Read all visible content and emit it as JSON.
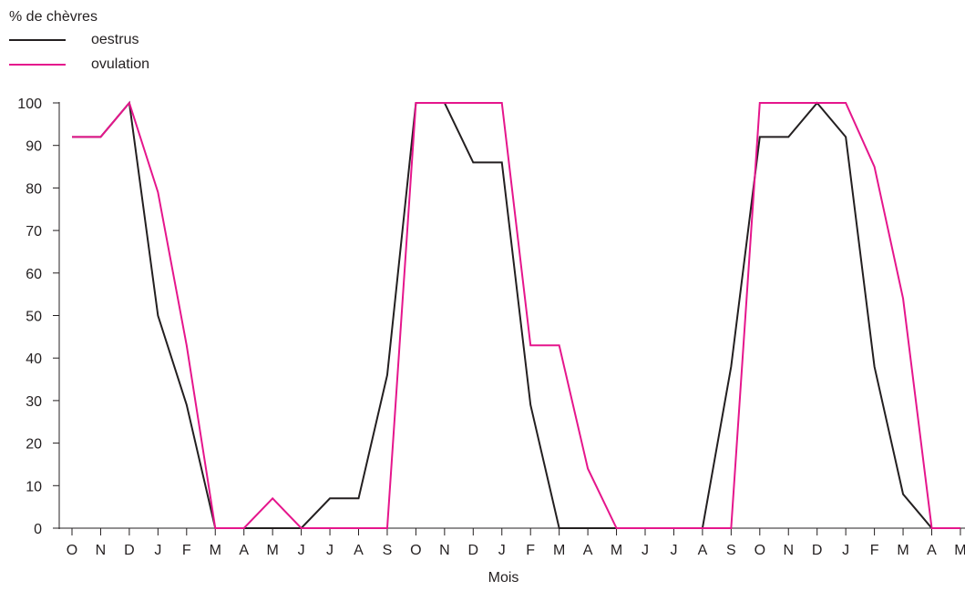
{
  "chart_data": {
    "type": "line",
    "ylabel": "% de chèvres",
    "xlabel": "Mois",
    "ylim": [
      0,
      100
    ],
    "yticks": [
      0,
      10,
      20,
      30,
      40,
      50,
      60,
      70,
      80,
      90,
      100
    ],
    "categories": [
      "O",
      "N",
      "D",
      "J",
      "F",
      "M",
      "A",
      "M",
      "J",
      "J",
      "A",
      "S",
      "O",
      "N",
      "D",
      "J",
      "F",
      "M",
      "A",
      "M",
      "J",
      "J",
      "A",
      "S",
      "O",
      "N",
      "D",
      "J",
      "F",
      "M",
      "A",
      "M"
    ],
    "grid": false,
    "legend_position": "top-left",
    "series": [
      {
        "name": "oestrus",
        "color": "#231f20",
        "values": [
          92,
          92,
          100,
          50,
          29,
          0,
          0,
          0,
          0,
          7,
          7,
          36,
          100,
          100,
          86,
          86,
          29,
          0,
          0,
          0,
          0,
          0,
          0,
          38,
          92,
          92,
          100,
          92,
          38,
          8,
          0,
          0
        ]
      },
      {
        "name": "ovulation",
        "color": "#e5168c",
        "values": [
          92,
          92,
          100,
          79,
          43,
          0,
          0,
          7,
          0,
          0,
          0,
          0,
          100,
          100,
          100,
          100,
          43,
          43,
          14,
          0,
          0,
          0,
          0,
          0,
          100,
          100,
          100,
          100,
          85,
          54,
          0,
          0
        ]
      }
    ]
  }
}
